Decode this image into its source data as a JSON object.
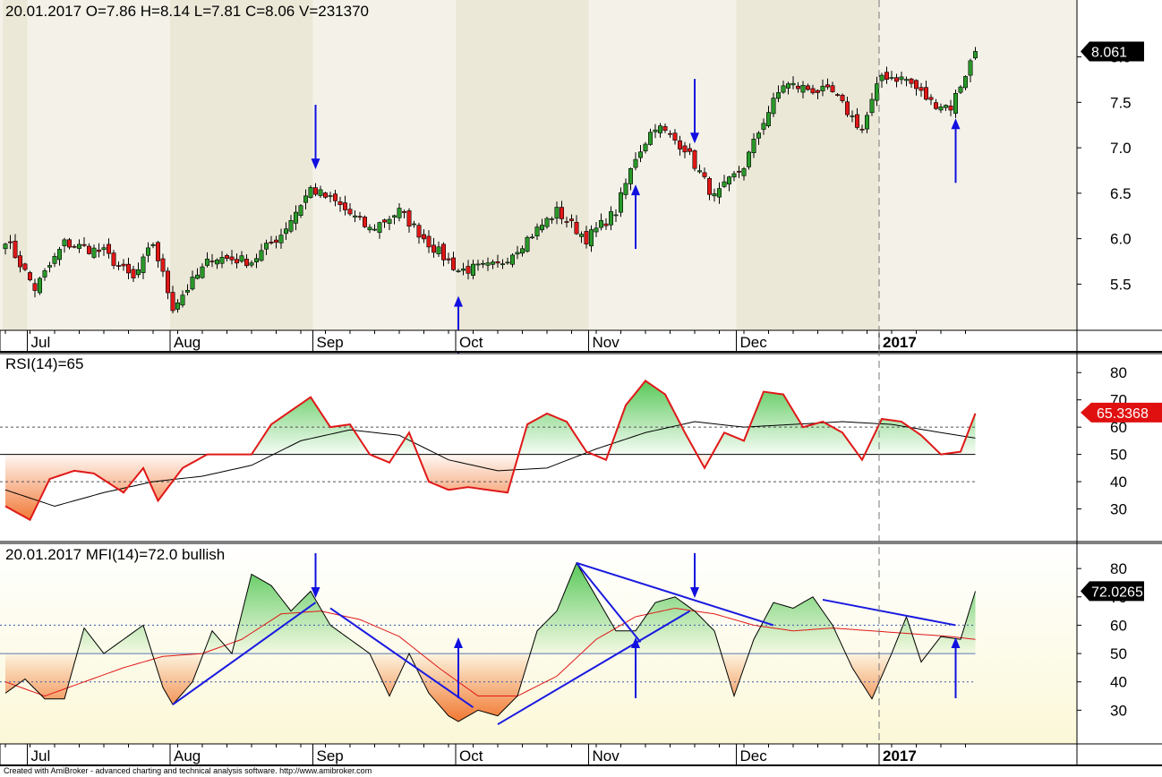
{
  "header": {
    "price_info": "20.01.2017   O=7.86  H=8.14  L=7.81  C=8.06  V=231370",
    "rsi_info": "RSI(14)=65",
    "mfi_info": "20.01.2017  MFI(14)=72.0  bullish",
    "footer": "Created with AmiBroker - advanced charting and technical analysis software. http://www.amibroker.com"
  },
  "colors": {
    "up": "#2a9a2a",
    "down": "#e01818",
    "arrow": "#1010e0",
    "trend": "#1a1ae0",
    "rsi_line": "#e01818",
    "rsi_ma": "#000000",
    "mfi_line": "#000000",
    "mfi_ma": "#e01818",
    "badge_dark": "#555555",
    "badge_blue": "#5f86bf",
    "last_price_bg": "#000000"
  },
  "chart_data": [
    {
      "type": "candlestick",
      "name": "price",
      "ylim": [
        5.1,
        8.35
      ],
      "yticks": [
        "5.5",
        "6.0",
        "6.5",
        "7.0",
        "7.5",
        "8.0"
      ],
      "ytick_values": [
        5.5,
        6.0,
        6.5,
        7.0,
        7.5,
        8.0
      ],
      "last_value_label": "8.061",
      "last_value": 8.06,
      "months": [
        "Jul",
        "Aug",
        "Sep",
        "Oct",
        "Nov",
        "Dec",
        "2017"
      ],
      "month_start_index": [
        5,
        34,
        63,
        92,
        119,
        149,
        178
      ],
      "bar_count": 198,
      "sample_points": [
        [
          0,
          6.0
        ],
        [
          6,
          5.45
        ],
        [
          12,
          5.95
        ],
        [
          20,
          5.85
        ],
        [
          26,
          5.55
        ],
        [
          30,
          5.95
        ],
        [
          34,
          5.25
        ],
        [
          42,
          5.8
        ],
        [
          50,
          5.75
        ],
        [
          56,
          6.05
        ],
        [
          62,
          6.55
        ],
        [
          67,
          6.4
        ],
        [
          74,
          6.1
        ],
        [
          80,
          6.3
        ],
        [
          86,
          5.95
        ],
        [
          92,
          5.65
        ],
        [
          100,
          5.7
        ],
        [
          106,
          6.0
        ],
        [
          112,
          6.3
        ],
        [
          118,
          6.0
        ],
        [
          124,
          6.3
        ],
        [
          128,
          6.9
        ],
        [
          132,
          7.25
        ],
        [
          138,
          7.0
        ],
        [
          144,
          6.45
        ],
        [
          150,
          6.8
        ],
        [
          154,
          7.3
        ],
        [
          158,
          7.7
        ],
        [
          163,
          7.65
        ],
        [
          168,
          7.6
        ],
        [
          174,
          7.2
        ],
        [
          178,
          7.8
        ],
        [
          183,
          7.75
        ],
        [
          188,
          7.5
        ],
        [
          192,
          7.45
        ],
        [
          197,
          8.06
        ]
      ],
      "signal_arrows": [
        {
          "index": 63,
          "direction": "down"
        },
        {
          "index": 92,
          "direction": "up"
        },
        {
          "index": 128,
          "direction": "up"
        },
        {
          "index": 140,
          "direction": "down"
        },
        {
          "index": 193,
          "direction": "up"
        }
      ]
    },
    {
      "type": "line",
      "name": "RSI(14)",
      "ylim": [
        20,
        85
      ],
      "yticks": [
        "30",
        "40",
        "50",
        "60",
        "70",
        "80"
      ],
      "ytick_values": [
        30,
        40,
        50,
        60,
        70,
        80
      ],
      "reference_levels": [
        40,
        50,
        60
      ],
      "level_badges": [
        "60",
        "50",
        "40"
      ],
      "last_value_label": "65.3368",
      "last_value": 65.34,
      "series_points": [
        [
          0,
          31
        ],
        [
          5,
          26
        ],
        [
          9,
          41
        ],
        [
          14,
          44
        ],
        [
          18,
          43
        ],
        [
          24,
          36
        ],
        [
          28,
          45
        ],
        [
          31,
          33
        ],
        [
          36,
          45
        ],
        [
          41,
          50
        ],
        [
          46,
          50
        ],
        [
          50,
          50
        ],
        [
          54,
          61
        ],
        [
          58,
          66
        ],
        [
          62,
          71
        ],
        [
          66,
          60
        ],
        [
          70,
          61
        ],
        [
          74,
          50
        ],
        [
          78,
          47
        ],
        [
          82,
          58
        ],
        [
          86,
          40
        ],
        [
          90,
          37
        ],
        [
          94,
          38
        ],
        [
          98,
          37
        ],
        [
          102,
          36
        ],
        [
          106,
          61
        ],
        [
          110,
          65
        ],
        [
          114,
          62
        ],
        [
          118,
          51
        ],
        [
          122,
          48
        ],
        [
          126,
          68
        ],
        [
          130,
          77
        ],
        [
          134,
          72
        ],
        [
          138,
          58
        ],
        [
          142,
          45
        ],
        [
          146,
          58
        ],
        [
          150,
          55
        ],
        [
          154,
          73
        ],
        [
          158,
          72
        ],
        [
          162,
          60
        ],
        [
          166,
          62
        ],
        [
          170,
          58
        ],
        [
          174,
          48
        ],
        [
          178,
          63
        ],
        [
          182,
          62
        ],
        [
          186,
          57
        ],
        [
          190,
          50
        ],
        [
          194,
          51
        ],
        [
          197,
          65
        ]
      ],
      "ma_points": [
        [
          0,
          37
        ],
        [
          10,
          31
        ],
        [
          20,
          36
        ],
        [
          30,
          40
        ],
        [
          40,
          42
        ],
        [
          50,
          46
        ],
        [
          60,
          55
        ],
        [
          70,
          59
        ],
        [
          80,
          57
        ],
        [
          90,
          48
        ],
        [
          100,
          44
        ],
        [
          110,
          45
        ],
        [
          120,
          52
        ],
        [
          130,
          58
        ],
        [
          140,
          62
        ],
        [
          150,
          60
        ],
        [
          160,
          61
        ],
        [
          170,
          62
        ],
        [
          180,
          61
        ],
        [
          190,
          58
        ],
        [
          197,
          56
        ]
      ]
    },
    {
      "type": "line",
      "name": "MFI(14)",
      "ylim": [
        20,
        87
      ],
      "yticks": [
        "30",
        "40",
        "50",
        "60",
        "70",
        "80"
      ],
      "ytick_values": [
        30,
        40,
        50,
        60,
        70,
        80
      ],
      "reference_levels": [
        40,
        50,
        60
      ],
      "level_badges": [
        "60",
        "50",
        "40"
      ],
      "last_value_label": "72.0265",
      "last_value": 72.03,
      "series_points": [
        [
          0,
          36
        ],
        [
          4,
          41
        ],
        [
          8,
          34
        ],
        [
          12,
          34
        ],
        [
          16,
          59
        ],
        [
          20,
          50
        ],
        [
          24,
          55
        ],
        [
          28,
          60
        ],
        [
          32,
          38
        ],
        [
          34,
          32
        ],
        [
          38,
          40
        ],
        [
          42,
          58
        ],
        [
          46,
          50
        ],
        [
          50,
          78
        ],
        [
          54,
          74
        ],
        [
          58,
          65
        ],
        [
          62,
          72
        ],
        [
          66,
          60
        ],
        [
          70,
          55
        ],
        [
          74,
          50
        ],
        [
          78,
          35
        ],
        [
          82,
          50
        ],
        [
          86,
          36
        ],
        [
          90,
          28
        ],
        [
          92,
          26
        ],
        [
          96,
          30
        ],
        [
          100,
          28
        ],
        [
          104,
          35
        ],
        [
          108,
          58
        ],
        [
          112,
          65
        ],
        [
          116,
          82
        ],
        [
          120,
          70
        ],
        [
          124,
          58
        ],
        [
          128,
          58
        ],
        [
          132,
          68
        ],
        [
          136,
          70
        ],
        [
          140,
          65
        ],
        [
          144,
          58
        ],
        [
          148,
          35
        ],
        [
          152,
          55
        ],
        [
          156,
          68
        ],
        [
          160,
          66
        ],
        [
          164,
          70
        ],
        [
          168,
          60
        ],
        [
          172,
          45
        ],
        [
          176,
          34
        ],
        [
          180,
          50
        ],
        [
          183,
          63
        ],
        [
          186,
          47
        ],
        [
          190,
          56
        ],
        [
          194,
          55
        ],
        [
          197,
          72
        ]
      ],
      "ma_points": [
        [
          0,
          40
        ],
        [
          8,
          35
        ],
        [
          16,
          40
        ],
        [
          24,
          45
        ],
        [
          32,
          49
        ],
        [
          40,
          50
        ],
        [
          48,
          55
        ],
        [
          56,
          64
        ],
        [
          64,
          65
        ],
        [
          72,
          62
        ],
        [
          80,
          56
        ],
        [
          88,
          45
        ],
        [
          96,
          35
        ],
        [
          104,
          35
        ],
        [
          112,
          42
        ],
        [
          120,
          55
        ],
        [
          128,
          63
        ],
        [
          136,
          66
        ],
        [
          144,
          64
        ],
        [
          152,
          60
        ],
        [
          160,
          58
        ],
        [
          168,
          59
        ],
        [
          176,
          58
        ],
        [
          184,
          57
        ],
        [
          192,
          56
        ],
        [
          197,
          55
        ]
      ],
      "trendlines": [
        [
          [
            34,
            32
          ],
          [
            63,
            68
          ]
        ],
        [
          [
            66,
            66
          ],
          [
            95,
            31
          ]
        ],
        [
          [
            100,
            25
          ],
          [
            139,
            65
          ]
        ],
        [
          [
            116,
            82
          ],
          [
            129,
            54
          ]
        ],
        [
          [
            116,
            82
          ],
          [
            156,
            60
          ]
        ],
        [
          [
            166,
            69
          ],
          [
            193,
            60
          ]
        ]
      ],
      "signal_arrows": [
        {
          "index": 63,
          "direction": "down"
        },
        {
          "index": 92,
          "direction": "up"
        },
        {
          "index": 128,
          "direction": "up"
        },
        {
          "index": 140,
          "direction": "down"
        },
        {
          "index": 193,
          "direction": "up"
        }
      ]
    }
  ]
}
